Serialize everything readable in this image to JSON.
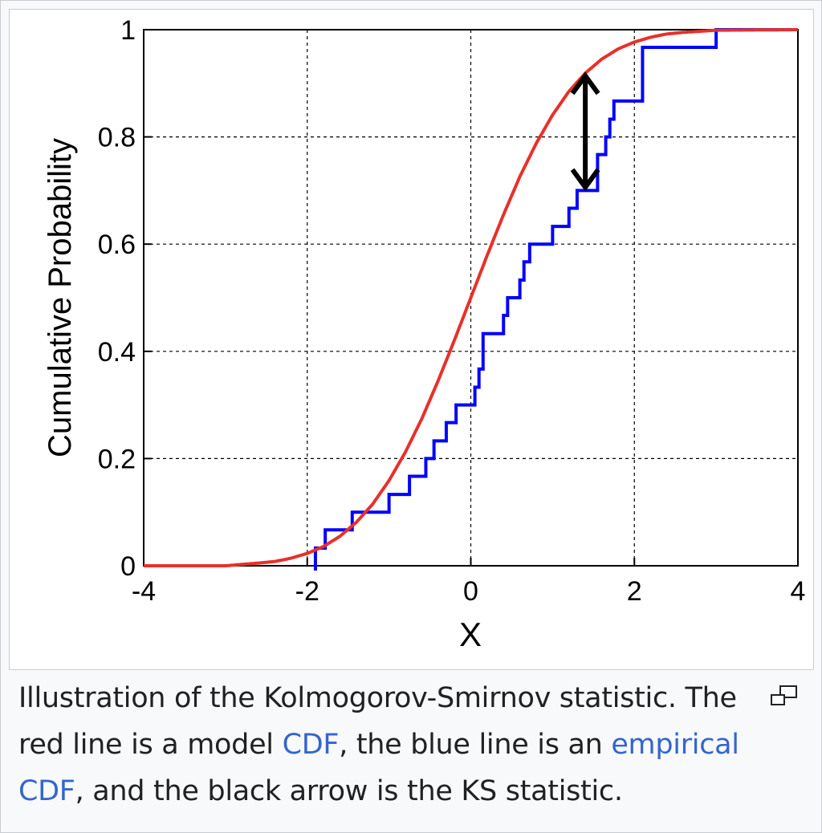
{
  "caption": {
    "text_1": "Illustration of the Kolmogorov-Smirnov statistic. The red line is a model ",
    "link_1": "CDF",
    "text_2": ", the blue line is an ",
    "link_2": "empirical CDF",
    "text_3": ", and the black arrow is the KS statistic."
  },
  "icons": {
    "magnify": "enlarge-icon"
  },
  "colors": {
    "link": "#3366cc",
    "model_cdf": "#e8302a",
    "empirical_cdf": "#0000ff",
    "arrow": "#000000"
  },
  "chart_data": {
    "type": "line",
    "title": "",
    "xlabel": "X",
    "ylabel": "Cumulative Probability",
    "xlim": [
      -4,
      4
    ],
    "ylim": [
      0,
      1
    ],
    "xticks": [
      "-4",
      "-2",
      "0",
      "2",
      "4"
    ],
    "yticks": [
      "0",
      "0.2",
      "0.4",
      "0.6",
      "0.8",
      "1"
    ],
    "grid": true,
    "series": [
      {
        "kind": "model CDF",
        "color": "#e8302a",
        "distribution": "standard normal",
        "x": [
          -4,
          -3,
          -2.6,
          -2.4,
          -2.2,
          -2,
          -1.8,
          -1.6,
          -1.4,
          -1.2,
          -1,
          -0.8,
          -0.6,
          -0.4,
          -0.2,
          0,
          0.2,
          0.4,
          0.6,
          0.8,
          1,
          1.2,
          1.4,
          1.6,
          1.8,
          2,
          2.2,
          2.4,
          2.6,
          3,
          4
        ],
        "y": [
          0.0,
          0.0,
          0.005,
          0.008,
          0.014,
          0.023,
          0.036,
          0.055,
          0.081,
          0.115,
          0.159,
          0.212,
          0.274,
          0.345,
          0.421,
          0.5,
          0.579,
          0.655,
          0.726,
          0.788,
          0.841,
          0.885,
          0.919,
          0.945,
          0.964,
          0.977,
          0.986,
          0.992,
          0.995,
          0.999,
          1.0
        ]
      },
      {
        "kind": "empirical CDF",
        "color": "#0000ff",
        "step": true,
        "x": [
          -1.9,
          -1.78,
          -1.45,
          -1.0,
          -0.75,
          -0.55,
          -0.45,
          -0.3,
          -0.18,
          0.05,
          0.1,
          0.15,
          0.4,
          0.45,
          0.6,
          0.65,
          0.72,
          1.0,
          1.2,
          1.3,
          1.55,
          1.65,
          1.7,
          1.75,
          2.1,
          3.0
        ],
        "y": [
          0.033,
          0.067,
          0.1,
          0.133,
          0.167,
          0.2,
          0.233,
          0.267,
          0.3,
          0.333,
          0.367,
          0.433,
          0.467,
          0.5,
          0.533,
          0.567,
          0.6,
          0.633,
          0.667,
          0.7,
          0.767,
          0.8,
          0.833,
          0.867,
          0.967,
          1.0
        ]
      }
    ],
    "annotation": {
      "type": "double-arrow",
      "x": 1.4,
      "y_from": 0.7,
      "y_to": 0.92
    }
  }
}
